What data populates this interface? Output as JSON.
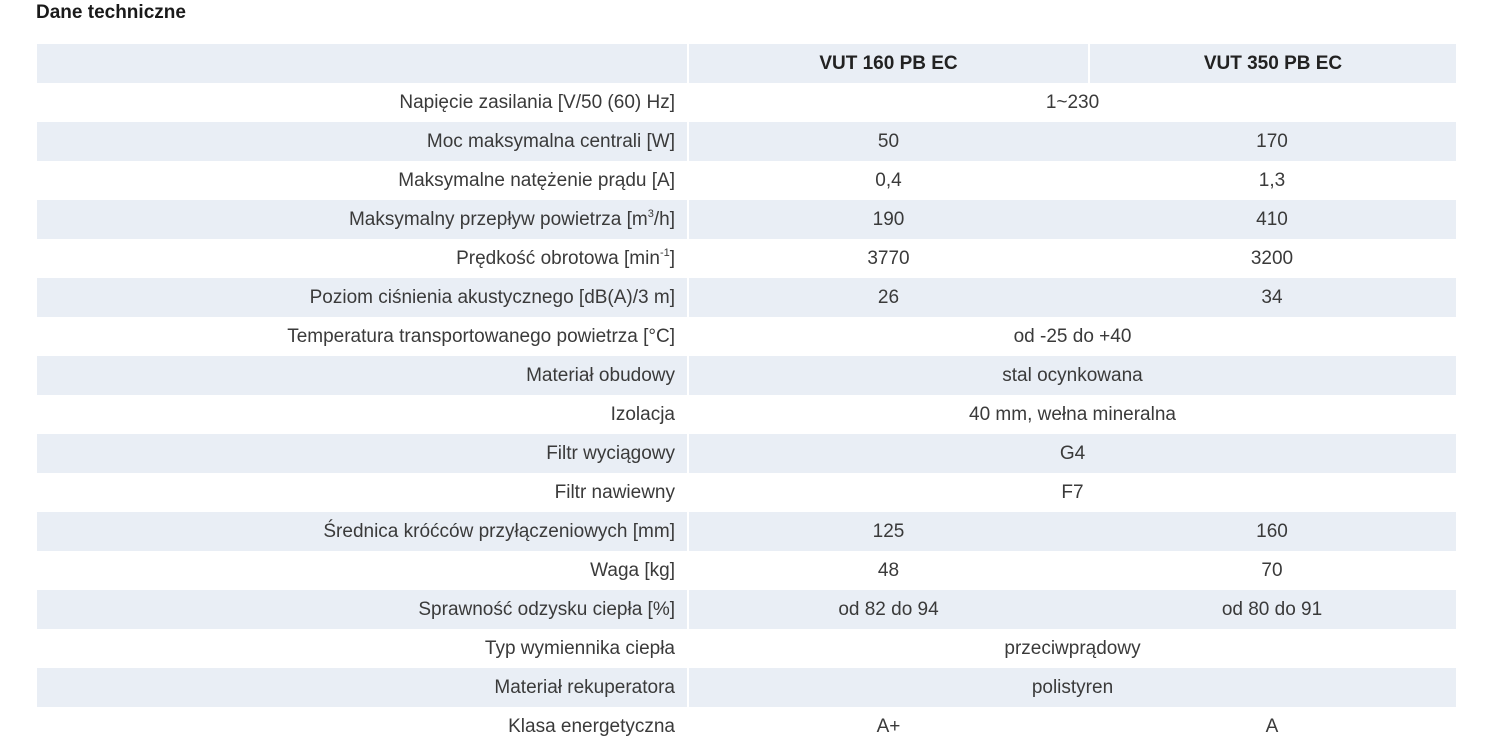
{
  "section_title": "Dane techniczne",
  "columns": {
    "label": "",
    "model_a": "VUT 160 PB EC",
    "model_b": "VUT 350 PB EC"
  },
  "rows": [
    {
      "label_pre": "Napięcie zasilania [V/50 (60) Hz]",
      "label_sup": "",
      "label_post": "",
      "merged": true,
      "value": "1~230"
    },
    {
      "label_pre": "Moc maksymalna centrali [W]",
      "label_sup": "",
      "label_post": "",
      "merged": false,
      "a": "50",
      "b": "170"
    },
    {
      "label_pre": "Maksymalne natężenie prądu [A]",
      "label_sup": "",
      "label_post": "",
      "merged": false,
      "a": "0,4",
      "b": "1,3"
    },
    {
      "label_pre": "Maksymalny przepływ powietrza [m",
      "label_sup": "3",
      "label_post": "/h]",
      "merged": false,
      "a": "190",
      "b": "410"
    },
    {
      "label_pre": "Prędkość obrotowa [min",
      "label_sup": "-1",
      "label_post": "]",
      "merged": false,
      "a": "3770",
      "b": "3200"
    },
    {
      "label_pre": "Poziom ciśnienia akustycznego [dB(A)/3 m]",
      "label_sup": "",
      "label_post": "",
      "merged": false,
      "a": "26",
      "b": "34"
    },
    {
      "label_pre": "Temperatura transportowanego powietrza [°C]",
      "label_sup": "",
      "label_post": "",
      "merged": true,
      "value": "od -25 do +40"
    },
    {
      "label_pre": "Materiał obudowy",
      "label_sup": "",
      "label_post": "",
      "merged": true,
      "value": "stal ocynkowana"
    },
    {
      "label_pre": "Izolacja",
      "label_sup": "",
      "label_post": "",
      "merged": true,
      "value": "40 mm, wełna mineralna"
    },
    {
      "label_pre": "Filtr wyciągowy",
      "label_sup": "",
      "label_post": "",
      "merged": true,
      "value": "G4"
    },
    {
      "label_pre": "Filtr nawiewny",
      "label_sup": "",
      "label_post": "",
      "merged": true,
      "value": "F7"
    },
    {
      "label_pre": "Średnica króćców przyłączeniowych [mm]",
      "label_sup": "",
      "label_post": "",
      "merged": false,
      "a": "125",
      "b": "160"
    },
    {
      "label_pre": "Waga [kg]",
      "label_sup": "",
      "label_post": "",
      "merged": false,
      "a": "48",
      "b": "70"
    },
    {
      "label_pre": "Sprawność odzysku ciepła [%]",
      "label_sup": "",
      "label_post": "",
      "merged": false,
      "a": "od 82 do 94",
      "b": "od 80 do 91"
    },
    {
      "label_pre": "Typ wymiennika ciepła",
      "label_sup": "",
      "label_post": "",
      "merged": true,
      "value": "przeciwprądowy"
    },
    {
      "label_pre": "Materiał rekuperatora",
      "label_sup": "",
      "label_post": "",
      "merged": true,
      "value": "polistyren"
    },
    {
      "label_pre": "Klasa energetyczna",
      "label_sup": "",
      "label_post": "",
      "merged": false,
      "a": "A+",
      "b": "A"
    }
  ],
  "colors": {
    "stripe": "#e9eef5",
    "text": "#3a3a3a",
    "heading": "#1a1a1a"
  }
}
